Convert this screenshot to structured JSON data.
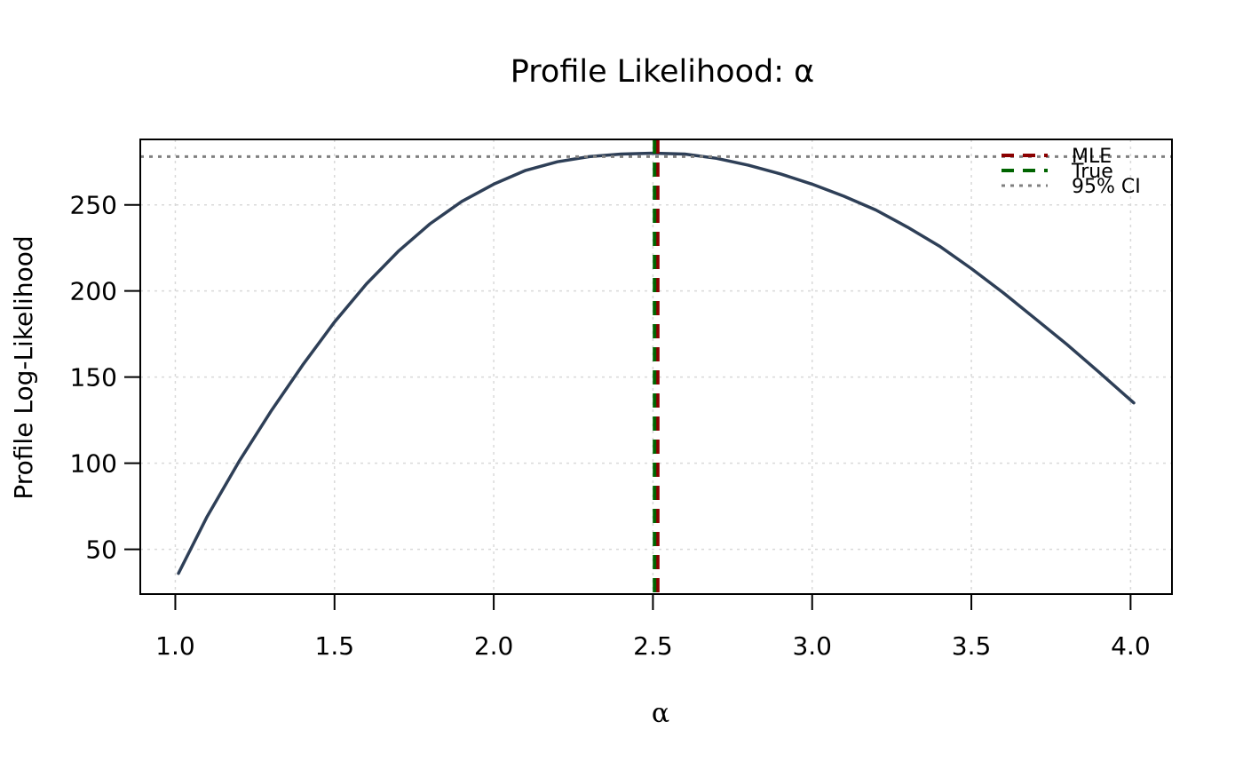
{
  "chart_data": {
    "type": "line",
    "title": "Profile Likelihood: α",
    "xlabel": "α",
    "ylabel": "Profile Log-Likelihood",
    "xlim": [
      0.89,
      4.13
    ],
    "ylim": [
      24,
      288
    ],
    "x_ticks": [
      1.0,
      1.5,
      2.0,
      2.5,
      3.0,
      3.5,
      4.0
    ],
    "x_tick_labels": [
      "1.0",
      "1.5",
      "2.0",
      "2.5",
      "3.0",
      "3.5",
      "4.0"
    ],
    "y_ticks": [
      50,
      100,
      150,
      200,
      250
    ],
    "y_tick_labels": [
      "50",
      "100",
      "150",
      "200",
      "250"
    ],
    "grid": true,
    "legend_position": "top-right",
    "series": [
      {
        "color": "#2e3f57",
        "x": [
          1.01,
          1.1,
          1.2,
          1.3,
          1.4,
          1.5,
          1.6,
          1.7,
          1.8,
          1.9,
          2.0,
          2.1,
          2.2,
          2.3,
          2.4,
          2.5,
          2.6,
          2.7,
          2.8,
          2.9,
          3.0,
          3.1,
          3.2,
          3.3,
          3.4,
          3.5,
          3.6,
          3.7,
          3.8,
          3.9,
          4.01
        ],
        "y": [
          36,
          69,
          101,
          130,
          157,
          182,
          204,
          223,
          239,
          252,
          262,
          270,
          275,
          278,
          279.5,
          280,
          279.5,
          277,
          273,
          268,
          262,
          255,
          247,
          237,
          226,
          213,
          199,
          184,
          169,
          153,
          135
        ]
      }
    ],
    "reference_lines": [
      {
        "orientation": "vertical",
        "value": 2.515,
        "label": "MLE",
        "color": "#8b0000",
        "style": "dashed"
      },
      {
        "orientation": "vertical",
        "value": 2.505,
        "label": "True",
        "color": "#006400",
        "style": "dashed"
      },
      {
        "orientation": "horizontal",
        "value": 278,
        "label": "95% CI",
        "color": "#808080",
        "style": "dotted"
      }
    ],
    "legend": [
      {
        "label": "MLE",
        "color": "#8b0000",
        "style": "dashed"
      },
      {
        "label": "True",
        "color": "#006400",
        "style": "dashed"
      },
      {
        "label": "95% CI",
        "color": "#808080",
        "style": "dotted"
      }
    ]
  }
}
